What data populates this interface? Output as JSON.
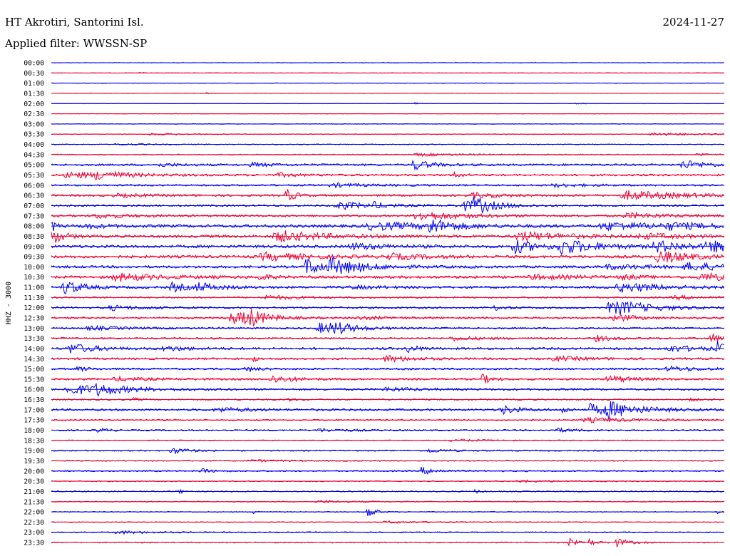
{
  "header": {
    "station": "HT Akrotiri, Santorini Isl.",
    "date": "2024-11-27",
    "filter": "Applied filter: WWSSN-SP"
  },
  "chart_data": {
    "type": "line",
    "title": "HT Akrotiri, Santorini Isl.",
    "ylabel": "HHZ - 3000",
    "colors": {
      "even": "#0000ee",
      "odd": "#ee0033"
    },
    "rows": [
      {
        "label": "00:00",
        "noise": 0.35,
        "events": []
      },
      {
        "label": "00:30",
        "noise": 0.3,
        "events": [
          [
            0.13,
            1.2,
            0.005
          ]
        ]
      },
      {
        "label": "01:00",
        "noise": 0.35,
        "events": []
      },
      {
        "label": "01:30",
        "noise": 0.3,
        "events": [
          [
            0.23,
            1.0,
            0.005
          ]
        ]
      },
      {
        "label": "02:00",
        "noise": 0.3,
        "events": [
          [
            0.54,
            1.5,
            0.005
          ],
          [
            0.78,
            1.5,
            0.005
          ]
        ]
      },
      {
        "label": "02:30",
        "noise": 0.3,
        "events": []
      },
      {
        "label": "03:00",
        "noise": 0.4,
        "events": []
      },
      {
        "label": "03:30",
        "noise": 0.5,
        "events": [
          [
            0.9,
            2.0,
            0.04
          ],
          [
            0.15,
            1.2,
            0.03
          ]
        ]
      },
      {
        "label": "04:00",
        "noise": 0.6,
        "events": [
          [
            0.1,
            1.0,
            0.03
          ]
        ]
      },
      {
        "label": "04:30",
        "noise": 0.7,
        "events": [
          [
            0.55,
            1.8,
            0.04
          ],
          [
            0.96,
            1.5,
            0.01
          ]
        ]
      },
      {
        "label": "05:00",
        "noise": 1.4,
        "events": [
          [
            0.54,
            7.0,
            0.015
          ],
          [
            0.94,
            6.0,
            0.02
          ],
          [
            0.3,
            2.5,
            0.02
          ],
          [
            0.16,
            2.0,
            0.02
          ]
        ]
      },
      {
        "label": "05:30",
        "noise": 1.3,
        "events": [
          [
            0.03,
            4.0,
            0.04
          ],
          [
            0.07,
            5.0,
            0.02
          ],
          [
            0.6,
            6.0,
            0.005
          ],
          [
            0.34,
            2.5,
            0.02
          ]
        ]
      },
      {
        "label": "06:00",
        "noise": 1.2,
        "events": [
          [
            0.42,
            2.5,
            0.03
          ],
          [
            0.75,
            2.0,
            0.03
          ]
        ]
      },
      {
        "label": "06:30",
        "noise": 1.4,
        "events": [
          [
            0.35,
            9.0,
            0.008
          ],
          [
            0.86,
            6.0,
            0.05
          ],
          [
            0.63,
            3.0,
            0.03
          ],
          [
            0.1,
            2.0,
            0.03
          ]
        ]
      },
      {
        "label": "07:00",
        "noise": 1.3,
        "events": [
          [
            0.43,
            5.0,
            0.03
          ],
          [
            0.61,
            8.0,
            0.015
          ],
          [
            0.63,
            9.0,
            0.02
          ],
          [
            0.48,
            3.0,
            0.01
          ]
        ]
      },
      {
        "label": "07:30",
        "noise": 1.4,
        "events": [
          [
            0.55,
            6.0,
            0.04
          ],
          [
            0.07,
            3.0,
            0.03
          ],
          [
            0.86,
            3.5,
            0.04
          ]
        ]
      },
      {
        "label": "08:00",
        "noise": 2.0,
        "events": [
          [
            0.0,
            9.0,
            0.004
          ],
          [
            0.48,
            5.0,
            0.05
          ],
          [
            0.56,
            10.0,
            0.02
          ],
          [
            0.83,
            5.0,
            0.05
          ],
          [
            0.05,
            3.0,
            0.02
          ],
          [
            0.92,
            3.5,
            0.03
          ]
        ]
      },
      {
        "label": "08:30",
        "noise": 1.9,
        "events": [
          [
            0.0,
            12.0,
            0.01
          ],
          [
            0.34,
            7.0,
            0.04
          ],
          [
            0.7,
            6.0,
            0.04
          ],
          [
            0.88,
            3.0,
            0.04
          ]
        ]
      },
      {
        "label": "09:00",
        "noise": 2.0,
        "events": [
          [
            0.69,
            9.0,
            0.02
          ],
          [
            0.76,
            10.0,
            0.03
          ],
          [
            0.9,
            7.0,
            0.03
          ],
          [
            0.98,
            6.0,
            0.03
          ],
          [
            0.45,
            4.0,
            0.03
          ]
        ]
      },
      {
        "label": "09:30",
        "noise": 1.9,
        "events": [
          [
            0.32,
            5.0,
            0.04
          ],
          [
            0.5,
            4.0,
            0.03
          ],
          [
            0.9,
            8.0,
            0.01
          ],
          [
            0.92,
            5.0,
            0.03
          ]
        ]
      },
      {
        "label": "10:00",
        "noise": 1.7,
        "events": [
          [
            0.38,
            11.0,
            0.02
          ],
          [
            0.42,
            9.0,
            0.03
          ],
          [
            0.95,
            5.0,
            0.04
          ],
          [
            0.83,
            3.0,
            0.04
          ]
        ]
      },
      {
        "label": "10:30",
        "noise": 1.8,
        "events": [
          [
            0.1,
            5.0,
            0.04
          ],
          [
            0.31,
            4.0,
            0.01
          ],
          [
            0.85,
            4.0,
            0.01
          ],
          [
            0.97,
            5.0,
            0.03
          ],
          [
            0.72,
            3.0,
            0.04
          ]
        ]
      },
      {
        "label": "11:00",
        "noise": 1.6,
        "events": [
          [
            0.02,
            10.0,
            0.015
          ],
          [
            0.18,
            6.0,
            0.015
          ],
          [
            0.22,
            5.0,
            0.02
          ],
          [
            0.85,
            6.0,
            0.04
          ],
          [
            0.45,
            2.0,
            0.03
          ]
        ]
      },
      {
        "label": "11:30",
        "noise": 1.1,
        "events": [
          [
            0.32,
            3.0,
            0.03
          ],
          [
            0.93,
            2.5,
            0.03
          ]
        ]
      },
      {
        "label": "12:00",
        "noise": 1.3,
        "events": [
          [
            0.09,
            3.0,
            0.03
          ],
          [
            0.83,
            8.0,
            0.015
          ],
          [
            0.85,
            6.0,
            0.04
          ],
          [
            0.66,
            3.0,
            0.01
          ]
        ]
      },
      {
        "label": "12:30",
        "noise": 1.2,
        "events": [
          [
            0.27,
            9.0,
            0.02
          ],
          [
            0.29,
            12.0,
            0.015
          ],
          [
            0.84,
            5.0,
            0.02
          ],
          [
            0.46,
            2.0,
            0.03
          ]
        ]
      },
      {
        "label": "13:00",
        "noise": 1.2,
        "events": [
          [
            0.4,
            7.0,
            0.02
          ],
          [
            0.42,
            6.0,
            0.02
          ],
          [
            0.06,
            2.5,
            0.03
          ]
        ]
      },
      {
        "label": "13:30",
        "noise": 1.2,
        "events": [
          [
            0.98,
            8.0,
            0.01
          ],
          [
            0.81,
            4.0,
            0.015
          ],
          [
            0.6,
            2.5,
            0.03
          ]
        ]
      },
      {
        "label": "14:00",
        "noise": 1.6,
        "events": [
          [
            0.03,
            7.0,
            0.02
          ],
          [
            0.53,
            5.0,
            0.01
          ],
          [
            0.99,
            8.0,
            0.01
          ],
          [
            0.17,
            3.0,
            0.02
          ],
          [
            0.92,
            4.0,
            0.03
          ]
        ]
      },
      {
        "label": "14:30",
        "noise": 1.4,
        "events": [
          [
            0.3,
            5.0,
            0.003
          ],
          [
            0.5,
            5.0,
            0.02
          ],
          [
            0.75,
            3.0,
            0.03
          ]
        ]
      },
      {
        "label": "15:00",
        "noise": 1.3,
        "events": [
          [
            0.04,
            3.0,
            0.01
          ],
          [
            0.29,
            4.0,
            0.01
          ],
          [
            0.92,
            3.0,
            0.03
          ]
        ]
      },
      {
        "label": "15:30",
        "noise": 1.3,
        "events": [
          [
            0.33,
            5.0,
            0.02
          ],
          [
            0.64,
            7.0,
            0.008
          ],
          [
            0.83,
            5.0,
            0.02
          ],
          [
            0.1,
            2.5,
            0.03
          ]
        ]
      },
      {
        "label": "16:00",
        "noise": 1.4,
        "events": [
          [
            0.03,
            7.0,
            0.04
          ],
          [
            0.07,
            5.0,
            0.02
          ],
          [
            0.5,
            2.5,
            0.03
          ]
        ]
      },
      {
        "label": "16:30",
        "noise": 1.0,
        "events": [
          [
            0.12,
            3.0,
            0.005
          ],
          [
            0.35,
            2.5,
            0.005
          ],
          [
            0.95,
            2.5,
            0.005
          ]
        ]
      },
      {
        "label": "17:00",
        "noise": 1.4,
        "events": [
          [
            0.67,
            6.0,
            0.015
          ],
          [
            0.76,
            5.0,
            0.005
          ],
          [
            0.8,
            8.0,
            0.02
          ],
          [
            0.83,
            9.0,
            0.03
          ],
          [
            0.25,
            3.0,
            0.03
          ]
        ]
      },
      {
        "label": "17:30",
        "noise": 1.0,
        "events": [
          [
            0.8,
            3.0,
            0.04
          ],
          [
            0.7,
            2.5,
            0.005
          ]
        ]
      },
      {
        "label": "18:00",
        "noise": 1.0,
        "events": [
          [
            0.07,
            3.0,
            0.01
          ],
          [
            0.4,
            2.0,
            0.03
          ],
          [
            0.75,
            2.5,
            0.02
          ]
        ]
      },
      {
        "label": "18:30",
        "noise": 0.7,
        "events": [
          [
            0.6,
            1.5,
            0.03
          ]
        ]
      },
      {
        "label": "19:00",
        "noise": 0.9,
        "events": [
          [
            0.18,
            4.0,
            0.015
          ],
          [
            0.56,
            2.5,
            0.02
          ]
        ]
      },
      {
        "label": "19:30",
        "noise": 0.7,
        "events": [
          [
            0.3,
            1.5,
            0.03
          ]
        ]
      },
      {
        "label": "20:00",
        "noise": 0.9,
        "events": [
          [
            0.22,
            4.0,
            0.01
          ],
          [
            0.55,
            5.0,
            0.015
          ]
        ]
      },
      {
        "label": "20:30",
        "noise": 0.7,
        "events": [
          [
            0.7,
            1.5,
            0.03
          ]
        ]
      },
      {
        "label": "21:00",
        "noise": 0.8,
        "events": [
          [
            0.19,
            2.5,
            0.005
          ],
          [
            0.63,
            2.5,
            0.005
          ]
        ]
      },
      {
        "label": "21:30",
        "noise": 0.7,
        "events": [
          [
            0.4,
            1.5,
            0.03
          ]
        ]
      },
      {
        "label": "22:00",
        "noise": 0.6,
        "events": [
          [
            0.3,
            5.0,
            0.003
          ],
          [
            0.47,
            10.0,
            0.006
          ],
          [
            0.99,
            4.0,
            0.003
          ]
        ]
      },
      {
        "label": "22:30",
        "noise": 0.6,
        "events": [
          [
            0.5,
            1.5,
            0.03
          ]
        ]
      },
      {
        "label": "23:00",
        "noise": 0.8,
        "events": [
          [
            0.1,
            2.0,
            0.03
          ]
        ]
      },
      {
        "label": "23:30",
        "noise": 0.8,
        "events": [
          [
            0.77,
            6.0,
            0.006
          ],
          [
            0.8,
            5.0,
            0.006
          ],
          [
            0.84,
            6.0,
            0.01
          ]
        ]
      }
    ]
  }
}
